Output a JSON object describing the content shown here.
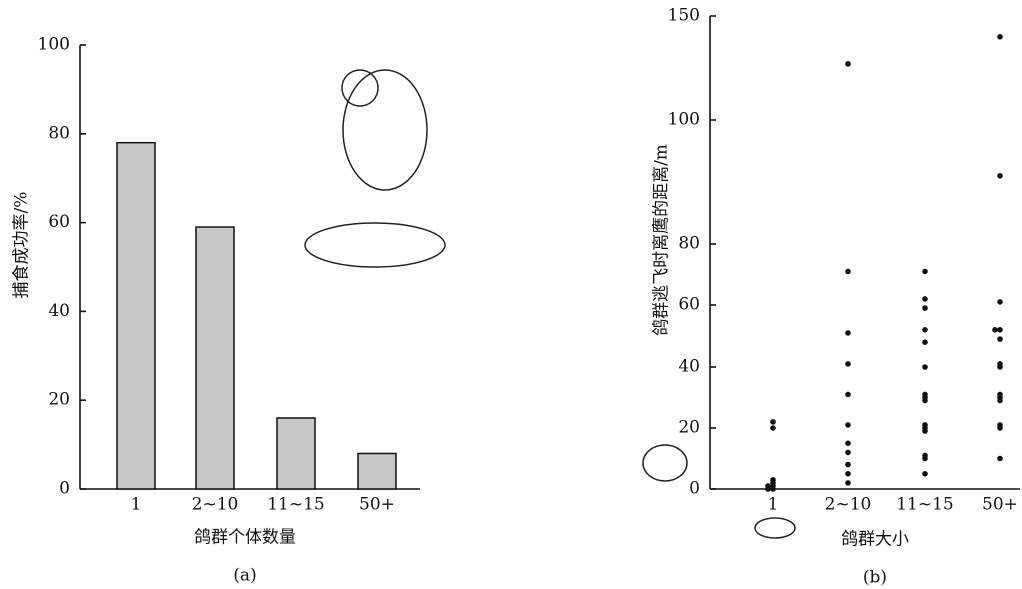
{
  "chart_data": [
    {
      "type": "bar",
      "categories": [
        "1",
        "2~10",
        "11~15",
        "50+"
      ],
      "values": [
        78,
        59,
        16,
        8
      ],
      "color": "#c8c8c8",
      "ylim": [
        0,
        100
      ],
      "yticks": [
        0,
        20,
        40,
        60,
        80,
        100
      ],
      "x_label": "鸽群个体数量",
      "y_label": "捕食成功率/%",
      "caption": "(a)"
    },
    {
      "type": "scatter",
      "categories": [
        "1",
        "2~10",
        "11~15",
        "50+"
      ],
      "color": "#111111",
      "values": [
        [
          0,
          0,
          1,
          1,
          2,
          3,
          20,
          22
        ],
        [
          127,
          71,
          51,
          41,
          31,
          21,
          15,
          12,
          8,
          5,
          2
        ],
        [
          71,
          62,
          59,
          52,
          48,
          40,
          31,
          30,
          29,
          21,
          20,
          19,
          11,
          10,
          5
        ],
        [
          140,
          91,
          61,
          52,
          52,
          49,
          41,
          40,
          31,
          30,
          29,
          21,
          20,
          10
        ]
      ],
      "ylim": [
        0,
        150
      ],
      "yticks": [
        0,
        20,
        40,
        60,
        80,
        100,
        150
      ],
      "x_label": "鸽群大小",
      "y_label": "鸽群逃飞时离鹰的距离/m",
      "caption": "(b)"
    }
  ]
}
